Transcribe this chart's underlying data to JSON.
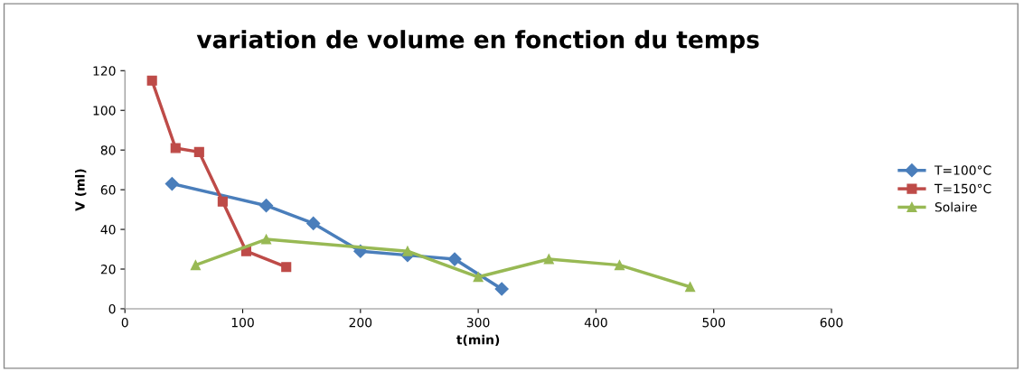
{
  "chart_data": {
    "type": "line",
    "title": "variation de volume en fonction du temps",
    "xlabel": "t(min)",
    "ylabel": "V (ml)",
    "xlim": [
      0,
      600
    ],
    "xticks": [
      0,
      100,
      200,
      300,
      400,
      500,
      600
    ],
    "ylim": [
      0,
      120
    ],
    "yticks": [
      0,
      20,
      40,
      60,
      80,
      100,
      120
    ],
    "grid": false,
    "legend": "right",
    "line_style": "solid",
    "series": [
      {
        "name": "T=100°C",
        "color": "#4a7ebb",
        "marker": "diamond",
        "x": [
          40,
          120,
          160,
          200,
          240,
          280,
          320
        ],
        "values": [
          63,
          52,
          43,
          29,
          27,
          25,
          10
        ]
      },
      {
        "name": "T=150°C",
        "color": "#be4b48",
        "marker": "square",
        "x": [
          23,
          43,
          63,
          83,
          103,
          137
        ],
        "values": [
          115,
          81,
          79,
          54,
          29,
          21
        ]
      },
      {
        "name": "Solaire",
        "color": "#98b954",
        "marker": "triangle",
        "x": [
          60,
          120,
          240,
          300,
          360,
          420,
          480
        ],
        "values": [
          22,
          35,
          29,
          16,
          25,
          22,
          11
        ]
      }
    ]
  }
}
